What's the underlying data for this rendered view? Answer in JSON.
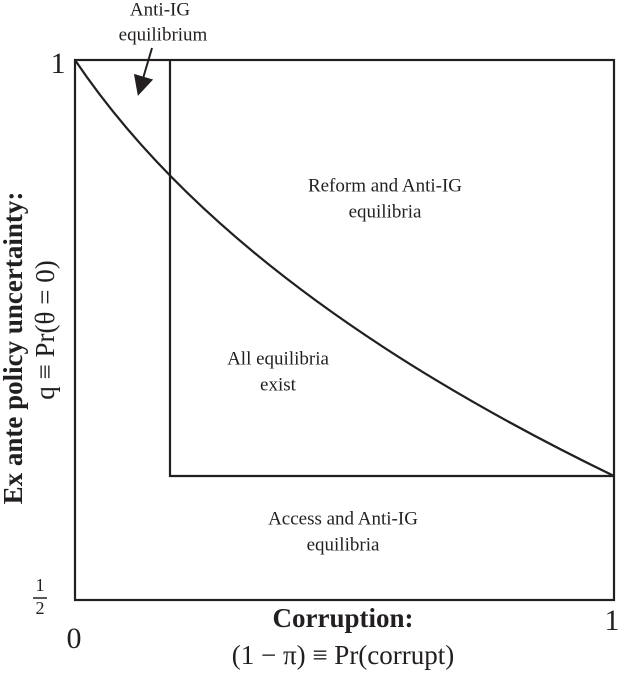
{
  "annotation": {
    "lines": [
      "Anti-IG",
      "equilibrium"
    ]
  },
  "y_axis": {
    "title": "Ex ante policy uncertainty:",
    "subtitle": "q ≡ Pr(θ = 0)",
    "top_tick": "1",
    "bottom_tick": {
      "numerator": "1",
      "denominator": "2"
    }
  },
  "x_axis": {
    "title": "Corruption:",
    "subtitle": "(1 − π) ≡ Pr(corrupt)",
    "left_tick": "0",
    "right_tick": "1"
  },
  "regions": [
    {
      "lines": [
        "Reform and Anti-IG",
        "equilibria"
      ]
    },
    {
      "lines": [
        "All equilibria",
        "exist"
      ]
    },
    {
      "lines": [
        "Access and Anti-IG",
        "equilibria"
      ]
    }
  ]
}
